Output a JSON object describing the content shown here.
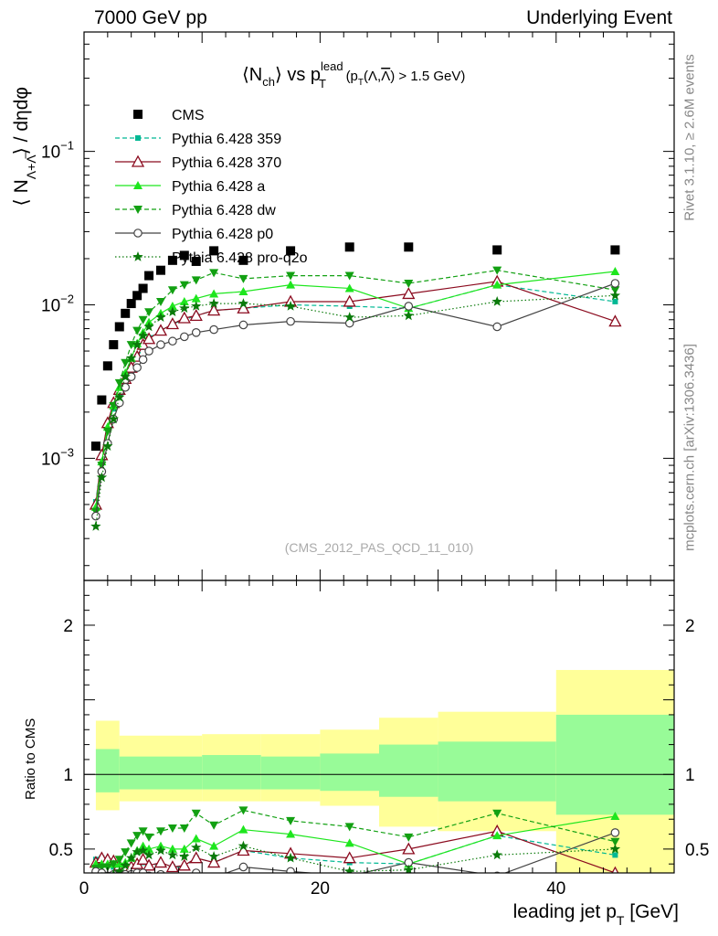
{
  "header": {
    "left": "7000 GeV pp",
    "right": "Underlying Event"
  },
  "side_labels": {
    "rivet": "Rivet 3.1.10, ≥ 2.6M events",
    "mcplots": "mcplots.cern.ch [arXiv:1306.3436]"
  },
  "watermark": "(CMS_2012_PAS_QCD_11_010)",
  "colors": {
    "cms": "#000000",
    "p359": "#00b894",
    "p370": "#8b0a1e",
    "pa": "#1ee61e",
    "pdw": "#12a012",
    "pp0": "#444444",
    "pq2o": "#0a7a0a",
    "band_inner": "#98fb98",
    "band_outer": "#ffff99"
  },
  "chart_data": [
    {
      "type": "scatter",
      "panel": "main",
      "title": "<Nch> vs pT lead (pT(Λ,Λ̅) > 1.5 GeV)",
      "title_parts": {
        "n": "⟨N",
        "n_sub": "ch",
        "vs": "⟩ vs p",
        "sup": "lead",
        "sub": "T",
        "cut_a": "(p",
        "cut_b": "T",
        "cut_c": "(Λ,",
        "cut_d": "Λ",
        "cut_e": ") > 1.5 GeV)"
      },
      "ylabel": "⟨ NΛ+Λ̅ ⟩ / dηdφ",
      "ylabel_parts": {
        "a": "⟨ N",
        "sub": "Λ+Λ̅",
        "b": "⟩ / dηdφ"
      },
      "xlim": [
        0,
        50
      ],
      "ylim": [
        0.00016,
        0.6
      ],
      "yscale": "log",
      "y_tick_labels": [
        {
          "base": "10",
          "exp": "−3",
          "value": 0.001
        },
        {
          "base": "10",
          "exp": "−2",
          "value": 0.01
        },
        {
          "base": "10",
          "exp": "−1",
          "value": 0.1
        }
      ],
      "legend": {
        "position": "top-left"
      },
      "series": [
        {
          "name": "CMS",
          "key": "cms",
          "marker": "square",
          "line": "none",
          "x": [
            1.0,
            1.5,
            2.0,
            2.5,
            3.0,
            3.5,
            4.0,
            4.5,
            5.0,
            5.5,
            6.5,
            7.5,
            8.5,
            9.5,
            11.0,
            13.5,
            17.5,
            22.5,
            27.5,
            35.0,
            45.0
          ],
          "y": [
            0.0012,
            0.0024,
            0.004,
            0.0055,
            0.0072,
            0.0088,
            0.0102,
            0.0115,
            0.0128,
            0.0155,
            0.0168,
            0.0195,
            0.021,
            0.0192,
            0.0225,
            0.0195,
            0.0225,
            0.0238,
            0.0238,
            0.0228,
            0.0228
          ]
        },
        {
          "name": "Pythia 6.428 359",
          "key": "p359",
          "marker": "small-square",
          "line": "dashed",
          "x": [
            1.0,
            1.5,
            2.0,
            2.5,
            3.0,
            3.5,
            4.0,
            4.5,
            5.0,
            5.5,
            6.5,
            7.5,
            8.5,
            9.5,
            11.0,
            13.5,
            17.5,
            22.5,
            27.5,
            35.0,
            45.0
          ],
          "y": [
            0.00052,
            0.00105,
            0.0017,
            0.0021,
            0.0026,
            0.0031,
            0.0038,
            0.0045,
            0.0053,
            0.0061,
            0.0068,
            0.0075,
            0.008,
            0.0085,
            0.0092,
            0.0095,
            0.01,
            0.0098,
            0.0095,
            0.0135,
            0.0105
          ]
        },
        {
          "name": "Pythia 6.428 370",
          "key": "p370",
          "marker": "open-triangle",
          "line": "solid",
          "x": [
            1.0,
            1.5,
            2.0,
            2.5,
            3.0,
            3.5,
            4.0,
            4.5,
            5.0,
            5.5,
            6.5,
            7.5,
            8.5,
            9.5,
            11.0,
            13.5,
            17.5,
            22.5,
            27.5,
            35.0,
            45.0
          ],
          "y": [
            0.0005,
            0.00105,
            0.0017,
            0.0023,
            0.0028,
            0.0033,
            0.0039,
            0.0046,
            0.0055,
            0.006,
            0.0068,
            0.0075,
            0.0082,
            0.0085,
            0.0092,
            0.0095,
            0.0105,
            0.0105,
            0.0118,
            0.0142,
            0.0078
          ]
        },
        {
          "name": "Pythia 6.428 a",
          "key": "pa",
          "marker": "triangle",
          "line": "solid",
          "x": [
            1.0,
            1.5,
            2.0,
            2.5,
            3.0,
            3.5,
            4.0,
            4.5,
            5.0,
            5.5,
            6.5,
            7.5,
            8.5,
            9.5,
            11.0,
            13.5,
            17.5,
            22.5,
            27.5,
            35.0,
            45.0
          ],
          "y": [
            0.00048,
            0.00095,
            0.0016,
            0.0022,
            0.0029,
            0.0036,
            0.0045,
            0.0056,
            0.0066,
            0.0077,
            0.0088,
            0.0098,
            0.0105,
            0.011,
            0.0118,
            0.0122,
            0.0135,
            0.0128,
            0.0095,
            0.0135,
            0.0165
          ]
        },
        {
          "name": "Pythia 6.428 dw",
          "key": "pdw",
          "marker": "down-triangle",
          "line": "dashed",
          "x": [
            1.0,
            1.5,
            2.0,
            2.5,
            3.0,
            3.5,
            4.0,
            4.5,
            5.0,
            5.5,
            6.5,
            7.5,
            8.5,
            9.5,
            11.0,
            13.5,
            17.5,
            22.5,
            27.5,
            35.0,
            45.0
          ],
          "y": [
            0.00045,
            0.0009,
            0.0015,
            0.0022,
            0.0031,
            0.0042,
            0.0055,
            0.0068,
            0.008,
            0.009,
            0.0105,
            0.0125,
            0.0135,
            0.0145,
            0.0162,
            0.0148,
            0.0155,
            0.0155,
            0.0138,
            0.0168,
            0.0125
          ]
        },
        {
          "name": "Pythia 6.428 p0",
          "key": "pp0",
          "marker": "open-circle",
          "line": "solid",
          "x": [
            1.0,
            1.5,
            2.0,
            2.5,
            3.0,
            3.5,
            4.0,
            4.5,
            5.0,
            5.5,
            6.5,
            7.5,
            8.5,
            9.5,
            11.0,
            13.5,
            17.5,
            22.5,
            27.5,
            35.0,
            45.0
          ],
          "y": [
            0.00042,
            0.00082,
            0.00125,
            0.0018,
            0.0023,
            0.0029,
            0.0034,
            0.0039,
            0.0044,
            0.005,
            0.0055,
            0.0058,
            0.0062,
            0.0066,
            0.0069,
            0.0074,
            0.0078,
            0.0076,
            0.0098,
            0.0072,
            0.0138
          ]
        },
        {
          "name": "Pythia 6.428 pro-q2o",
          "key": "pq2o",
          "marker": "star",
          "line": "dotted",
          "x": [
            1.0,
            1.5,
            2.0,
            2.5,
            3.0,
            3.5,
            4.0,
            4.5,
            5.0,
            5.5,
            6.5,
            7.5,
            8.5,
            9.5,
            11.0,
            13.5,
            17.5,
            22.5,
            27.5,
            35.0,
            45.0
          ],
          "y": [
            0.00036,
            0.00075,
            0.0012,
            0.0018,
            0.0025,
            0.0034,
            0.0045,
            0.0055,
            0.0063,
            0.0072,
            0.0083,
            0.009,
            0.0095,
            0.0098,
            0.0102,
            0.0102,
            0.0098,
            0.0083,
            0.0085,
            0.0105,
            0.0115
          ]
        }
      ]
    },
    {
      "type": "scatter",
      "panel": "ratio",
      "ylabel": "Ratio to CMS",
      "xlabel": "leading jet p",
      "xlabel_parts": {
        "a": "leading jet p",
        "sub": "T",
        "b": " [GeV]"
      },
      "xlim": [
        0,
        50
      ],
      "ylim": [
        0.34,
        2.3
      ],
      "x_ticks": [
        0,
        20,
        40
      ],
      "y_ticks": [
        0.5,
        1,
        2
      ],
      "reference_line": 1,
      "bands": [
        {
          "x0": 1,
          "x1": 3,
          "inner": [
            0.88,
            1.17
          ],
          "outer": [
            0.76,
            1.36
          ]
        },
        {
          "x0": 3,
          "x1": 10,
          "inner": [
            0.9,
            1.12
          ],
          "outer": [
            0.82,
            1.26
          ]
        },
        {
          "x0": 10,
          "x1": 15,
          "inner": [
            0.9,
            1.13
          ],
          "outer": [
            0.82,
            1.27
          ]
        },
        {
          "x0": 15,
          "x1": 20,
          "inner": [
            0.9,
            1.12
          ],
          "outer": [
            0.82,
            1.27
          ]
        },
        {
          "x0": 20,
          "x1": 25,
          "inner": [
            0.89,
            1.14
          ],
          "outer": [
            0.79,
            1.3
          ]
        },
        {
          "x0": 25,
          "x1": 30,
          "inner": [
            0.85,
            1.2
          ],
          "outer": [
            0.65,
            1.38
          ]
        },
        {
          "x0": 30,
          "x1": 40,
          "inner": [
            0.82,
            1.22
          ],
          "outer": [
            0.62,
            1.42
          ]
        },
        {
          "x0": 40,
          "x1": 50,
          "inner": [
            0.73,
            1.4
          ],
          "outer": [
            0.34,
            1.7
          ]
        }
      ],
      "series": [
        {
          "name": "Pythia 6.428 359",
          "key": "p359",
          "marker": "small-square",
          "line": "dashed",
          "x": [
            1.0,
            1.5,
            2.0,
            2.5,
            3.0,
            3.5,
            4.0,
            4.5,
            5.0,
            5.5,
            6.5,
            7.5,
            8.5,
            9.5,
            11.0,
            13.5,
            17.5,
            22.5,
            27.5,
            35.0,
            45.0
          ],
          "y": [
            0.43,
            0.44,
            0.42,
            0.38,
            0.36,
            0.35,
            0.37,
            0.39,
            0.41,
            0.39,
            0.4,
            0.38,
            0.38,
            0.44,
            0.41,
            0.49,
            0.44,
            0.41,
            0.4,
            0.59,
            0.46
          ]
        },
        {
          "name": "Pythia 6.428 370",
          "key": "p370",
          "marker": "open-triangle",
          "line": "solid",
          "x": [
            1.0,
            1.5,
            2.0,
            2.5,
            3.0,
            3.5,
            4.0,
            4.5,
            5.0,
            5.5,
            6.5,
            7.5,
            8.5,
            9.5,
            11.0,
            13.5,
            17.5,
            22.5,
            27.5,
            35.0,
            45.0
          ],
          "y": [
            0.41,
            0.44,
            0.43,
            0.42,
            0.39,
            0.38,
            0.38,
            0.4,
            0.43,
            0.39,
            0.41,
            0.38,
            0.39,
            0.44,
            0.41,
            0.49,
            0.47,
            0.44,
            0.5,
            0.62,
            0.34
          ]
        },
        {
          "name": "Pythia 6.428 a",
          "key": "pa",
          "marker": "triangle",
          "line": "solid",
          "x": [
            1.0,
            1.5,
            2.0,
            2.5,
            3.0,
            3.5,
            4.0,
            4.5,
            5.0,
            5.5,
            6.5,
            7.5,
            8.5,
            9.5,
            11.0,
            13.5,
            17.5,
            22.5,
            27.5,
            35.0,
            45.0
          ],
          "y": [
            0.4,
            0.4,
            0.4,
            0.4,
            0.4,
            0.41,
            0.44,
            0.49,
            0.52,
            0.5,
            0.52,
            0.5,
            0.5,
            0.57,
            0.52,
            0.63,
            0.6,
            0.54,
            0.4,
            0.59,
            0.72
          ]
        },
        {
          "name": "Pythia 6.428 dw",
          "key": "pdw",
          "marker": "down-triangle",
          "line": "dashed",
          "x": [
            1.0,
            1.5,
            2.0,
            2.5,
            3.0,
            3.5,
            4.0,
            4.5,
            5.0,
            5.5,
            6.5,
            7.5,
            8.5,
            9.5,
            11.0,
            13.5,
            17.5,
            22.5,
            27.5,
            35.0,
            45.0
          ],
          "y": [
            0.37,
            0.38,
            0.38,
            0.4,
            0.43,
            0.48,
            0.54,
            0.59,
            0.62,
            0.58,
            0.62,
            0.64,
            0.64,
            0.74,
            0.66,
            0.76,
            0.69,
            0.65,
            0.58,
            0.74,
            0.55
          ]
        },
        {
          "name": "Pythia 6.428 p0",
          "key": "pp0",
          "marker": "open-circle",
          "line": "solid",
          "x": [
            1.0,
            1.5,
            2.0,
            2.5,
            3.0,
            3.5,
            4.0,
            4.5,
            5.0,
            5.5,
            6.5,
            7.5,
            8.5,
            9.5,
            11.0,
            13.5,
            17.5,
            22.5,
            27.5,
            35.0,
            45.0
          ],
          "y": [
            0.35,
            0.34,
            0.32,
            0.33,
            0.32,
            0.33,
            0.33,
            0.34,
            0.34,
            0.32,
            0.33,
            0.3,
            0.3,
            0.34,
            0.31,
            0.38,
            0.35,
            0.32,
            0.41,
            0.32,
            0.61
          ]
        },
        {
          "name": "Pythia 6.428 pro-q2o",
          "key": "pq2o",
          "marker": "star",
          "line": "dotted",
          "x": [
            1.0,
            1.5,
            2.0,
            2.5,
            3.0,
            3.5,
            4.0,
            4.5,
            5.0,
            5.5,
            6.5,
            7.5,
            8.5,
            9.5,
            11.0,
            13.5,
            17.5,
            22.5,
            27.5,
            35.0,
            45.0
          ],
          "y": [
            0.3,
            0.31,
            0.3,
            0.33,
            0.35,
            0.39,
            0.44,
            0.48,
            0.49,
            0.46,
            0.49,
            0.46,
            0.45,
            0.51,
            0.45,
            0.52,
            0.44,
            0.35,
            0.36,
            0.46,
            0.5
          ]
        }
      ]
    }
  ]
}
